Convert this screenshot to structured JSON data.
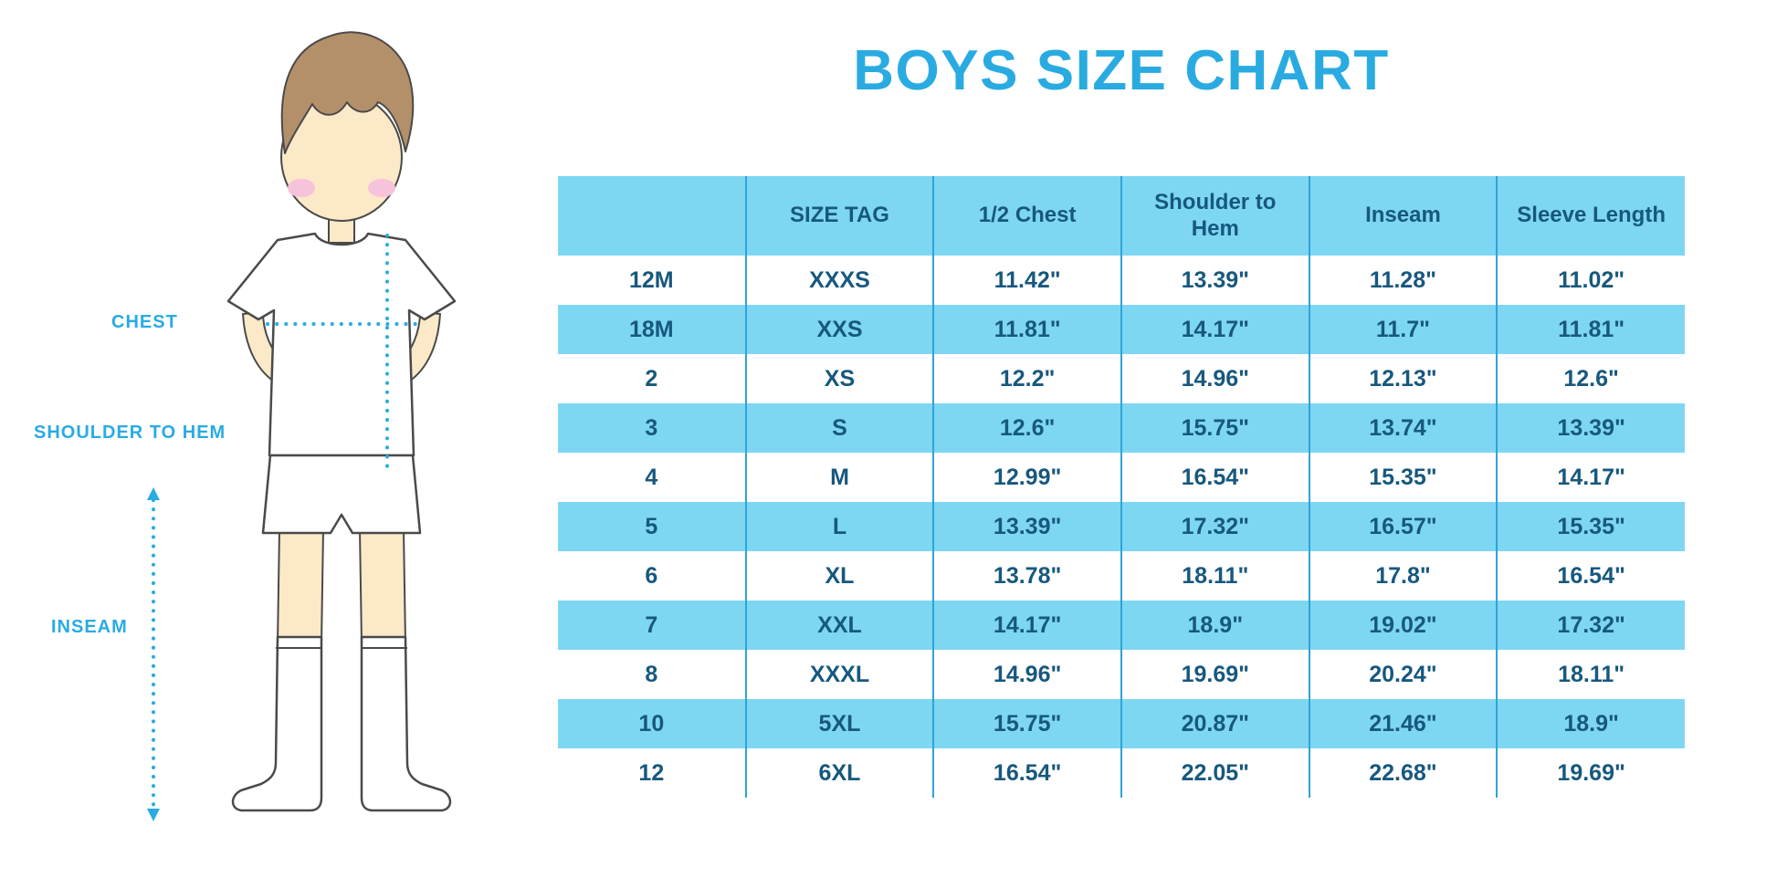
{
  "title": "BOYS SIZE CHART",
  "figure_labels": {
    "chest": "CHEST",
    "shoulder_to_hem": "SHOULDER TO HEM",
    "inseam": "INSEAM"
  },
  "colors": {
    "accent_blue": "#29abe2",
    "table_fill_cyan": "#7dd7f3",
    "table_border_blue": "#2fa3d6",
    "table_text_dark_blue": "#17587e",
    "skin": "#fbe9c8",
    "hair_brown": "#b3906a",
    "cheek_pink": "#f6c3da",
    "outline_gray": "#4a4a4a",
    "garment_white": "#ffffff"
  },
  "chart_data": {
    "type": "table",
    "title": "BOYS SIZE CHART",
    "units": "inches",
    "columns": [
      "",
      "SIZE TAG",
      "1/2 Chest",
      "Shoulder to Hem",
      "Inseam",
      "Sleeve Length"
    ],
    "rows": [
      [
        "12M",
        "XXXS",
        "11.42\"",
        "13.39\"",
        "11.28\"",
        "11.02\""
      ],
      [
        "18M",
        "XXS",
        "11.81\"",
        "14.17\"",
        "11.7\"",
        "11.81\""
      ],
      [
        "2",
        "XS",
        "12.2\"",
        "14.96\"",
        "12.13\"",
        "12.6\""
      ],
      [
        "3",
        "S",
        "12.6\"",
        "15.75\"",
        "13.74\"",
        "13.39\""
      ],
      [
        "4",
        "M",
        "12.99\"",
        "16.54\"",
        "15.35\"",
        "14.17\""
      ],
      [
        "5",
        "L",
        "13.39\"",
        "17.32\"",
        "16.57\"",
        "15.35\""
      ],
      [
        "6",
        "XL",
        "13.78\"",
        "18.11\"",
        "17.8\"",
        "16.54\""
      ],
      [
        "7",
        "XXL",
        "14.17\"",
        "18.9\"",
        "19.02\"",
        "17.32\""
      ],
      [
        "8",
        "XXXL",
        "14.96\"",
        "19.69\"",
        "20.24\"",
        "18.11\""
      ],
      [
        "10",
        "5XL",
        "15.75\"",
        "20.87\"",
        "21.46\"",
        "18.9\""
      ],
      [
        "12",
        "6XL",
        "16.54\"",
        "22.05\"",
        "22.68\"",
        "19.69\""
      ]
    ]
  }
}
